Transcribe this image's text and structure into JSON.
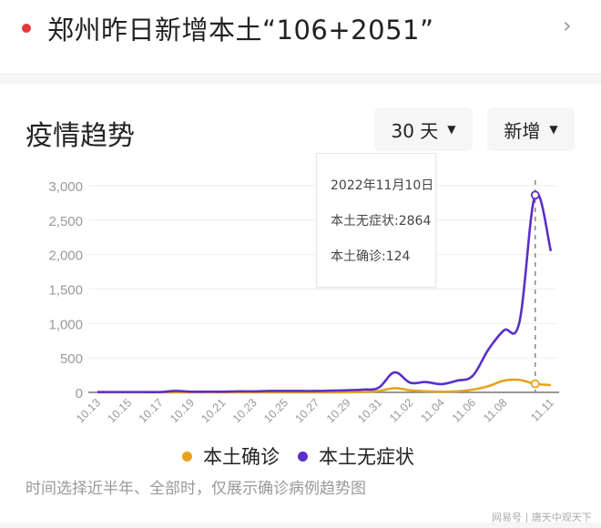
{
  "headline": {
    "title": "郑州昨日新增本土“106+2051”",
    "chevron_icon": "›"
  },
  "section": {
    "title": "疫情趋势",
    "range_dropdown": {
      "label": "30 天",
      "arrow": "▼"
    },
    "mode_dropdown": {
      "label": "新增",
      "arrow": "▼"
    }
  },
  "tooltip": {
    "date": "2022年11月10日",
    "asymptomatic": "本土无症状:2864",
    "confirmed": "本土确诊:124"
  },
  "legend": {
    "items": [
      {
        "label": "本土确诊",
        "color": "#e8a21c"
      },
      {
        "label": "本土无症状",
        "color": "#5b2fc9"
      }
    ]
  },
  "note": "时间选择近半年、全部时，仅展示确诊病例趋势图",
  "watermark": "网易号 | 唐天中观天下",
  "chart_data": {
    "type": "line",
    "title": "疫情趋势",
    "xlabel": "",
    "ylabel": "",
    "ylim": [
      0,
      3000
    ],
    "yticks": [
      "0",
      "500",
      "1,000",
      "1,500",
      "2,000",
      "2,500",
      "3,000"
    ],
    "x": [
      "10.13",
      "10.14",
      "10.15",
      "10.16",
      "10.17",
      "10.18",
      "10.19",
      "10.20",
      "10.21",
      "10.22",
      "10.23",
      "10.24",
      "10.25",
      "10.26",
      "10.27",
      "10.28",
      "10.29",
      "10.30",
      "10.31",
      "11.01",
      "11.02",
      "11.03",
      "11.04",
      "11.05",
      "11.06",
      "11.07",
      "11.08",
      "11.09",
      "11.10",
      "11.11"
    ],
    "xtick_labels": [
      "10.13",
      "10.15",
      "10.17",
      "10.19",
      "10.21",
      "10.23",
      "10.25",
      "10.27",
      "10.29",
      "10.31",
      "11.02",
      "11.04",
      "11.06",
      "11.08",
      "11.11"
    ],
    "series": [
      {
        "name": "本土确诊",
        "color": "#e8a21c",
        "values": [
          0,
          0,
          0,
          0,
          0,
          0,
          0,
          0,
          0,
          0,
          0,
          0,
          0,
          0,
          0,
          0,
          2,
          5,
          20,
          60,
          30,
          15,
          10,
          15,
          40,
          90,
          170,
          180,
          124,
          106
        ]
      },
      {
        "name": "本土无症状",
        "color": "#5b2fc9",
        "values": [
          5,
          5,
          5,
          5,
          5,
          20,
          10,
          10,
          10,
          15,
          15,
          20,
          20,
          20,
          20,
          25,
          30,
          40,
          70,
          290,
          140,
          150,
          120,
          170,
          240,
          620,
          900,
          1030,
          2864,
          2051
        ]
      }
    ],
    "highlight": {
      "x": "11.10",
      "本土无症状": 2864,
      "本土确诊": 124
    },
    "grid": true,
    "legend_position": "bottom"
  }
}
